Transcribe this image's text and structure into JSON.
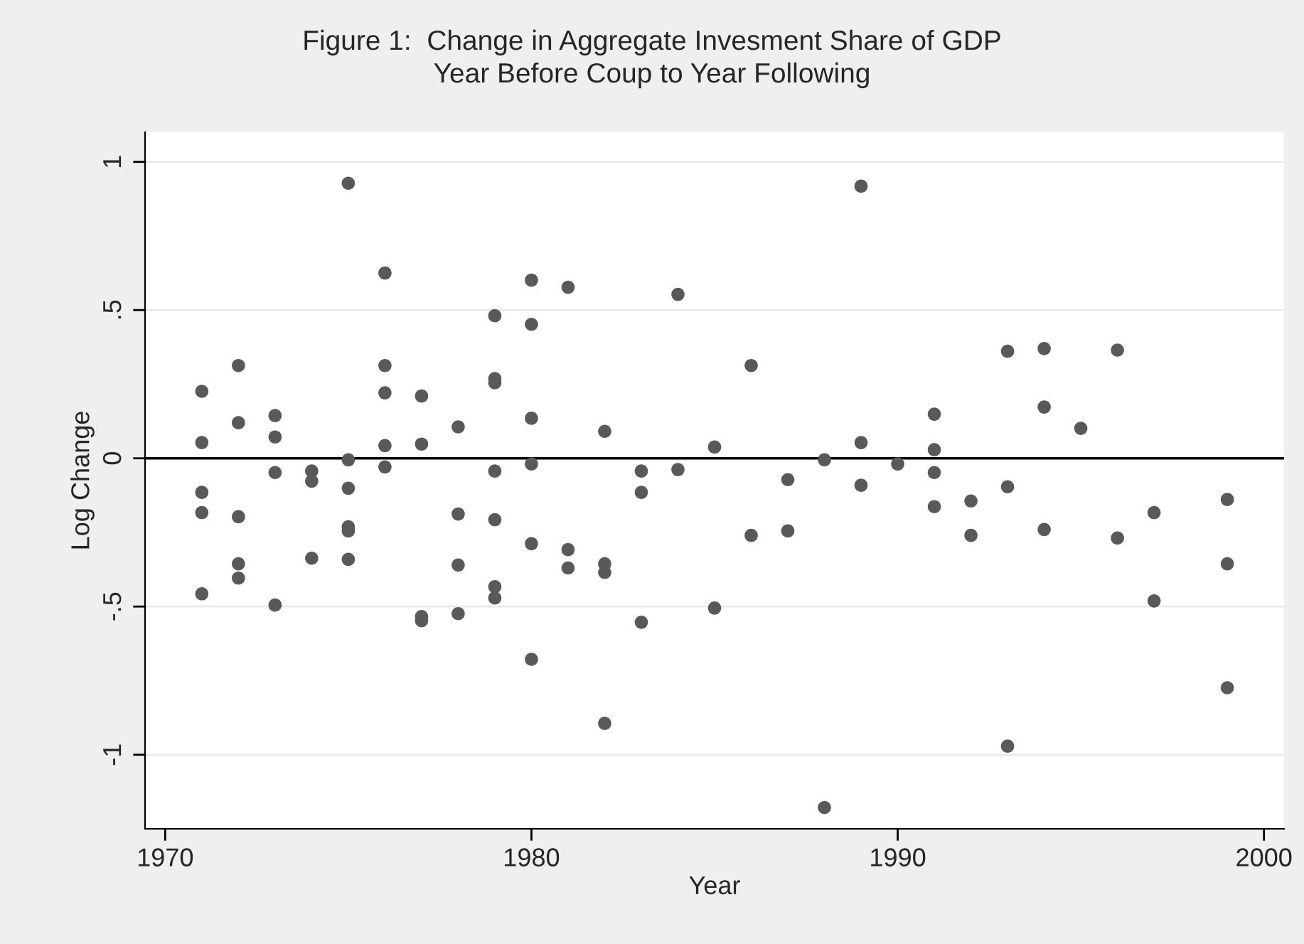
{
  "chart_data": {
    "type": "scatter",
    "title": "Figure 1:  Change in Aggregate Invesment Share of GDP",
    "subtitle": "Year Before Coup to Year Following",
    "xlabel": "Year",
    "ylabel": "Log Change",
    "x": [
      1971,
      1971,
      1971,
      1971,
      1971,
      1972,
      1972,
      1972,
      1972,
      1972,
      1973,
      1973,
      1973,
      1973,
      1974,
      1974,
      1974,
      1975,
      1975,
      1975,
      1975,
      1975,
      1975,
      1976,
      1976,
      1976,
      1976,
      1976,
      1977,
      1977,
      1977,
      1977,
      1978,
      1978,
      1978,
      1978,
      1979,
      1979,
      1979,
      1979,
      1979,
      1979,
      1979,
      1980,
      1980,
      1980,
      1980,
      1980,
      1980,
      1981,
      1981,
      1981,
      1982,
      1982,
      1982,
      1982,
      1983,
      1983,
      1983,
      1984,
      1984,
      1985,
      1985,
      1986,
      1986,
      1987,
      1987,
      1988,
      1988,
      1989,
      1989,
      1989,
      1990,
      1991,
      1991,
      1991,
      1991,
      1992,
      1992,
      1993,
      1993,
      1993,
      1994,
      1994,
      1994,
      1995,
      1996,
      1996,
      1997,
      1997,
      1999,
      1999,
      1999
    ],
    "series": [
      {
        "color": "#595959",
        "values": [
          0.226,
          0.053,
          -0.115,
          -0.183,
          -0.457,
          0.313,
          0.12,
          -0.197,
          -0.356,
          -0.404,
          0.144,
          0.072,
          -0.048,
          -0.495,
          -0.043,
          -0.077,
          -0.337,
          0.928,
          -0.005,
          -0.101,
          -0.231,
          -0.245,
          -0.341,
          0.625,
          0.313,
          0.221,
          0.043,
          -0.029,
          0.21,
          0.048,
          -0.534,
          -0.548,
          0.106,
          -0.188,
          -0.36,
          -0.524,
          0.481,
          0.269,
          0.255,
          -0.043,
          -0.207,
          -0.433,
          -0.471,
          0.601,
          0.452,
          0.135,
          -0.019,
          -0.288,
          -0.678,
          0.577,
          -0.308,
          -0.37,
          0.091,
          -0.356,
          -0.385,
          -0.894,
          -0.043,
          -0.115,
          -0.553,
          0.553,
          -0.038,
          0.038,
          -0.505,
          0.313,
          -0.26,
          -0.072,
          -0.245,
          -0.005,
          -1.178,
          0.918,
          0.053,
          -0.091,
          -0.019,
          0.149,
          0.029,
          -0.048,
          -0.163,
          -0.144,
          -0.26,
          0.361,
          -0.096,
          -0.971,
          0.37,
          0.173,
          -0.24,
          0.101,
          0.365,
          -0.269,
          -0.183,
          -0.481,
          -0.139,
          -0.356,
          -0.774
        ]
      }
    ],
    "xlim": [
      1969.45,
      2000.55
    ],
    "xticks": [
      1970,
      1980,
      1990,
      2000
    ],
    "ylim": [
      -1.25,
      1.1
    ],
    "yticks": [
      {
        "value": -1,
        "label": "-1"
      },
      {
        "value": -0.5,
        "label": "-.5"
      },
      {
        "value": 0,
        "label": "0"
      },
      {
        "value": 0.5,
        "label": ".5"
      },
      {
        "value": 1,
        "label": "1"
      }
    ],
    "ref_lines": [
      {
        "axis": "y",
        "value": 0,
        "color": "#000000"
      }
    ],
    "grid": "y",
    "marker": "circle",
    "legend": false
  }
}
